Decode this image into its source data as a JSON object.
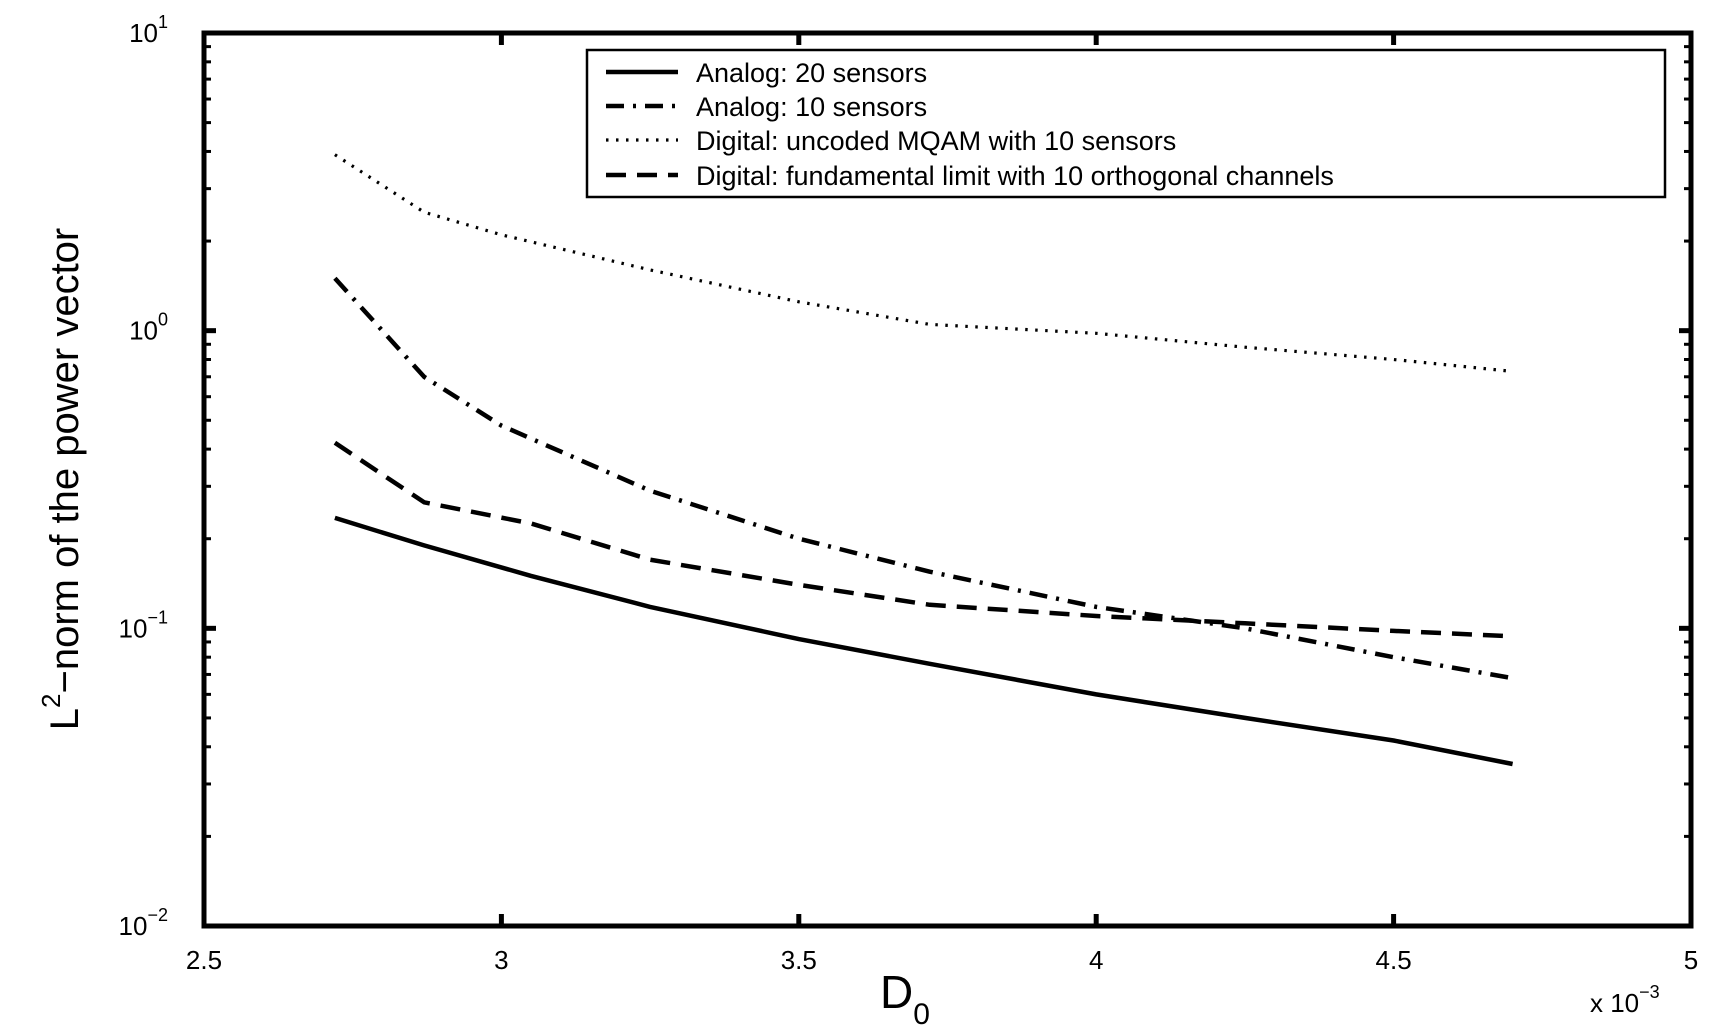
{
  "chart_data": {
    "type": "line",
    "xlabel": "D",
    "xlabel_sub": "0",
    "x_multiplier": {
      "prefix": "x 10",
      "exponent": "−3"
    },
    "ylabel": "L",
    "ylabel_sup": "2",
    "ylabel_rest": "−norm of the power vector",
    "xlim": [
      2.5,
      5
    ],
    "ylim": [
      0.01,
      10
    ],
    "yscale": "log",
    "grid": false,
    "legend_position": "top-right",
    "x_ticks": [
      {
        "value": 2.5,
        "label": "2.5"
      },
      {
        "value": 3,
        "label": "3"
      },
      {
        "value": 3.5,
        "label": "3.5"
      },
      {
        "value": 4,
        "label": "4"
      },
      {
        "value": 4.5,
        "label": "4.5"
      },
      {
        "value": 5,
        "label": "5"
      }
    ],
    "y_ticks": [
      {
        "value": 0.01,
        "base": "10",
        "exponent": "−2"
      },
      {
        "value": 0.1,
        "base": "10",
        "exponent": "−1"
      },
      {
        "value": 1,
        "base": "10",
        "exponent": "0"
      },
      {
        "value": 10,
        "base": "10",
        "exponent": "1"
      }
    ],
    "series": [
      {
        "name": "Analog: 20 sensors",
        "style": "solid",
        "x": [
          2.72,
          2.87,
          3.05,
          3.25,
          3.5,
          3.72,
          4.0,
          4.25,
          4.5,
          4.7
        ],
        "y": [
          0.235,
          0.19,
          0.15,
          0.118,
          0.092,
          0.076,
          0.06,
          0.05,
          0.042,
          0.035
        ]
      },
      {
        "name": "Analog: 10 sensors",
        "style": "dashdot",
        "x": [
          2.72,
          2.87,
          3.0,
          3.25,
          3.5,
          3.72,
          4.0,
          4.25,
          4.5,
          4.7
        ],
        "y": [
          1.5,
          0.7,
          0.48,
          0.29,
          0.2,
          0.155,
          0.118,
          0.1,
          0.08,
          0.068
        ]
      },
      {
        "name": "Digital: uncoded MQAM with 10 sensors",
        "style": "dotted",
        "x": [
          2.72,
          2.87,
          3.0,
          3.25,
          3.5,
          3.72,
          4.0,
          4.25,
          4.5,
          4.7
        ],
        "y": [
          3.9,
          2.5,
          2.1,
          1.6,
          1.25,
          1.05,
          0.98,
          0.88,
          0.8,
          0.73
        ]
      },
      {
        "name": "Digital: fundamental limit with 10 orthogonal channels",
        "style": "dashed",
        "x": [
          2.72,
          2.87,
          3.05,
          3.25,
          3.5,
          3.72,
          4.0,
          4.25,
          4.5,
          4.7
        ],
        "y": [
          0.42,
          0.265,
          0.225,
          0.17,
          0.14,
          0.12,
          0.11,
          0.104,
          0.098,
          0.094
        ]
      }
    ]
  }
}
